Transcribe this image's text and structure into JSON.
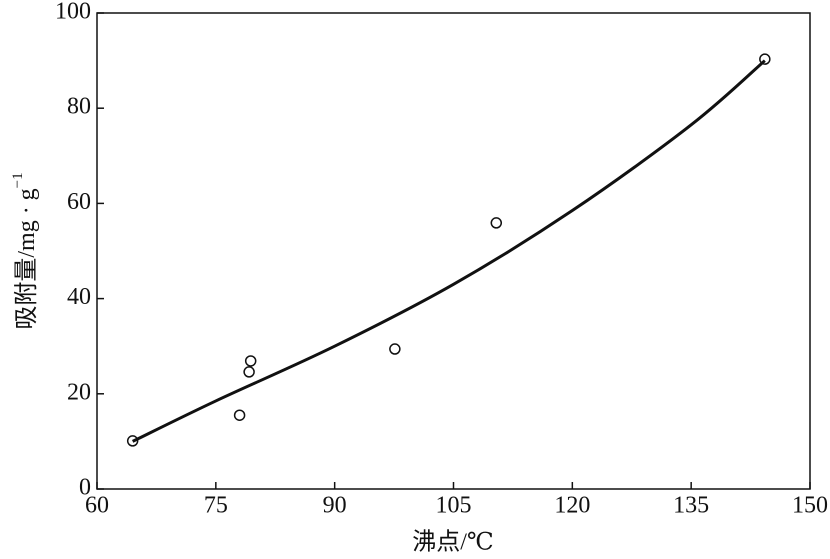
{
  "chart_data": {
    "type": "scatter",
    "xlabel": "沸点/℃",
    "ylabel": "吸附量/mg · g",
    "ylabel_sup": "−1",
    "xlim": [
      60,
      150
    ],
    "xticks": [
      60,
      75,
      90,
      105,
      120,
      135,
      150
    ],
    "ylim": [
      0,
      100
    ],
    "yticks": [
      0,
      20,
      40,
      60,
      80,
      100
    ],
    "grid": false,
    "color": "#111111",
    "points": {
      "x": [
        64.5,
        78,
        79.2,
        79.4,
        97.6,
        110.4,
        144.3
      ],
      "y": [
        10.1,
        15.5,
        24.6,
        26.9,
        29.4,
        55.9,
        90.3
      ]
    },
    "curve": {
      "x": [
        64.5,
        75,
        90,
        105,
        120,
        135,
        144.3
      ],
      "y": [
        10,
        18.5,
        30,
        43,
        58.5,
        76.5,
        90
      ]
    }
  }
}
